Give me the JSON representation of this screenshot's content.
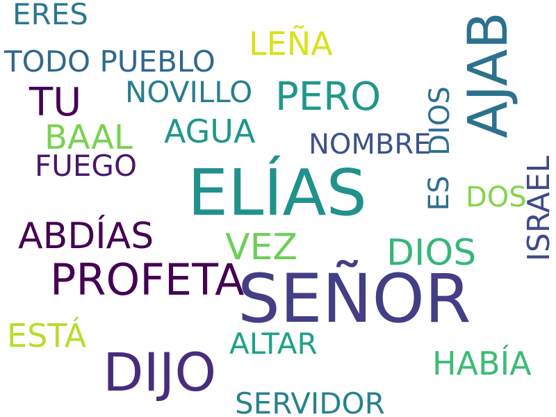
{
  "image_kind": "word-cloud",
  "background_color": "#ffffff",
  "words": {
    "senor": {
      "text": "SEÑOR",
      "color": "#433e85"
    },
    "elias": {
      "text": "ELÍAS",
      "color": "#21918c"
    },
    "dijo": {
      "text": "DIJO",
      "color": "#472d7b"
    },
    "profeta": {
      "text": "PROFETA",
      "color": "#440154"
    },
    "pero": {
      "text": "PERO",
      "color": "#1f988b"
    },
    "tu": {
      "text": "TU",
      "color": "#440154"
    },
    "abdias": {
      "text": "ABDÍAS",
      "color": "#440154"
    },
    "dios_h": {
      "text": "DIOS",
      "color": "#35b779"
    },
    "vez": {
      "text": "VEZ",
      "color": "#6ece58"
    },
    "baal": {
      "text": "BAAL",
      "color": "#7ad151"
    },
    "habia": {
      "text": "HABÍA",
      "color": "#3dbc74"
    },
    "esta": {
      "text": "ESTÁ",
      "color": "#b5de2b"
    },
    "agua": {
      "text": "AGUA",
      "color": "#1f968b"
    },
    "lena": {
      "text": "LEÑA",
      "color": "#d8e219"
    },
    "servidor": {
      "text": "SERVIDOR",
      "color": "#26828e"
    },
    "fuego": {
      "text": "FUEGO",
      "color": "#48186a"
    },
    "altar": {
      "text": "ALTAR",
      "color": "#1fa187"
    },
    "eres": {
      "text": "ERES",
      "color": "#2a788e"
    },
    "todo": {
      "text": "TODO PUEBLO",
      "color": "#31688e"
    },
    "novillo": {
      "text": "NOVILLO",
      "color": "#287d8e"
    },
    "nombre": {
      "text": "NOMBRE",
      "color": "#3b528b"
    },
    "dos": {
      "text": "DOS",
      "color": "#84d44b"
    },
    "ajab": {
      "text": "AJAB",
      "color": "#2c728e"
    },
    "israel": {
      "text": "ISRAEL",
      "color": "#3e4a89"
    },
    "dios_v": {
      "text": "DIOS",
      "color": "#2d708e"
    },
    "es": {
      "text": "ES",
      "color": "#2e6e8e"
    }
  }
}
